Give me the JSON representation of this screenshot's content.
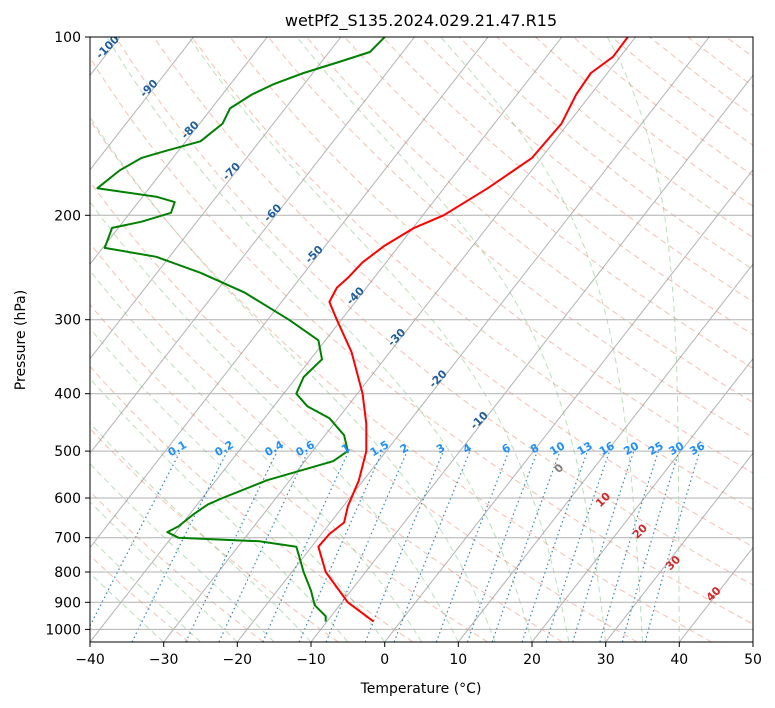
{
  "chart_data": {
    "type": "line",
    "title": "wetPf2_S135.2024.029.21.47.R15",
    "xlabel": "Temperature (°C)",
    "ylabel": "Pressure (hPa)",
    "xlim": [
      -40,
      50
    ],
    "ylim": [
      1050,
      100
    ],
    "y_scale": "log",
    "grid": true,
    "x_ticks": [
      -40,
      -30,
      -20,
      -10,
      0,
      10,
      20,
      30,
      40,
      50
    ],
    "y_ticks": [
      100,
      200,
      300,
      400,
      500,
      600,
      700,
      800,
      900,
      1000
    ],
    "series": [
      {
        "role": "temperature",
        "color": "#ff0000",
        "points": [
          [
            -1.5,
            970
          ],
          [
            -5,
            900
          ],
          [
            -8,
            800
          ],
          [
            -9,
            725
          ],
          [
            -7.5,
            690
          ],
          [
            -5.5,
            660
          ],
          [
            -5,
            620
          ],
          [
            -3.5,
            560
          ],
          [
            -2.5,
            500
          ],
          [
            -2.5,
            450
          ],
          [
            -3,
            400
          ],
          [
            -4.5,
            340
          ],
          [
            -6.5,
            300
          ],
          [
            -7.5,
            280
          ],
          [
            -6.5,
            265
          ],
          [
            -5,
            255
          ],
          [
            -3,
            240
          ],
          [
            0,
            225
          ],
          [
            4,
            210
          ],
          [
            8,
            200
          ],
          [
            14,
            180
          ],
          [
            20,
            160
          ],
          [
            24,
            140
          ],
          [
            26,
            125
          ],
          [
            28,
            115
          ],
          [
            31,
            108
          ],
          [
            33,
            100
          ]
        ]
      },
      {
        "role": "dewpoint",
        "color": "#008000",
        "points": [
          [
            -8,
            970
          ],
          [
            -8,
            950
          ],
          [
            -9.5,
            910
          ],
          [
            -10,
            860
          ],
          [
            -11,
            800
          ],
          [
            -11.5,
            760
          ],
          [
            -12,
            725
          ],
          [
            -17,
            710
          ],
          [
            -28,
            700
          ],
          [
            -29.5,
            685
          ],
          [
            -28,
            670
          ],
          [
            -26,
            640
          ],
          [
            -24,
            615
          ],
          [
            -22,
            600
          ],
          [
            -16,
            560
          ],
          [
            -7,
            520
          ],
          [
            -5,
            500
          ],
          [
            -5.5,
            470
          ],
          [
            -7.5,
            440
          ],
          [
            -10.5,
            420
          ],
          [
            -12,
            400
          ],
          [
            -11,
            375
          ],
          [
            -8.5,
            350
          ],
          [
            -9,
            325
          ],
          [
            -13,
            300
          ],
          [
            -19,
            270
          ],
          [
            -25,
            250
          ],
          [
            -31,
            235
          ],
          [
            -38,
            227
          ],
          [
            -37,
            210
          ],
          [
            -33,
            205
          ],
          [
            -29,
            198
          ],
          [
            -28.5,
            190
          ],
          [
            -31,
            186
          ],
          [
            -35,
            183
          ],
          [
            -39,
            180
          ],
          [
            -36,
            168
          ],
          [
            -33,
            160
          ],
          [
            -30,
            156
          ],
          [
            -25,
            150
          ],
          [
            -22,
            140
          ],
          [
            -21,
            132
          ],
          [
            -18,
            125
          ],
          [
            -15,
            120
          ],
          [
            -11,
            115
          ],
          [
            -6,
            110
          ],
          [
            -2,
            106
          ],
          [
            0,
            100
          ]
        ]
      }
    ],
    "background_lines": {
      "isotherm_step_c": 10,
      "dry_adiabat_color": "#f08b6e",
      "moist_adiabat_color": "#84c484",
      "mixing_ratio_color": "#1f77b4",
      "isotherm_color": "#999999"
    },
    "isotherm_labels": [
      "-100",
      "-90",
      "-80",
      "-70",
      "-60",
      "-50",
      "-40",
      "-30",
      "-20",
      "-10"
    ],
    "mixing_ratio_labels": [
      "0.1",
      "0.2",
      "0.4",
      "0.6",
      "1",
      "1.5",
      "2",
      "3",
      "4",
      "6",
      "8",
      "10",
      "13",
      "16",
      "20",
      "25",
      "30",
      "36"
    ],
    "theta_e_labels": [
      "0",
      "10",
      "20",
      "30",
      "40"
    ]
  }
}
